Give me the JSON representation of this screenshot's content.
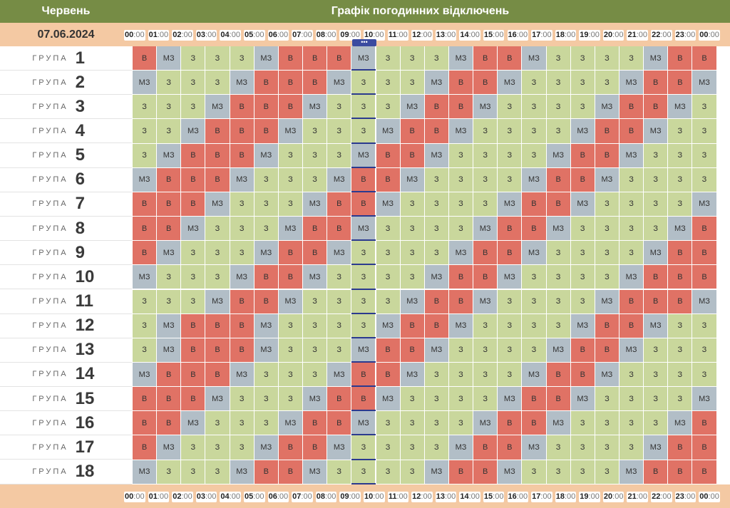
{
  "header": {
    "month": "Червень",
    "title": "Графік погодинних відключень"
  },
  "subheader": {
    "date": "07.06.2024"
  },
  "times": [
    "00:00",
    "01:00",
    "02:00",
    "03:00",
    "04:00",
    "05:00",
    "06:00",
    "07:00",
    "08:00",
    "09:00",
    "10:00",
    "11:00",
    "12:00",
    "13:00",
    "14:00",
    "15:00",
    "16:00",
    "17:00",
    "18:00",
    "19:00",
    "20:00",
    "21:00",
    "22:00",
    "23:00",
    "00:00"
  ],
  "group_word": "ГРУПА",
  "now_indicator": "•••",
  "legend_codes": {
    "V": "В",
    "MZ": "МЗ",
    "Z": "З"
  },
  "colors": {
    "V": "#e07265",
    "MZ": "#b2bec7",
    "Z": "#c9d79c",
    "header": "#768c45",
    "subheader": "#f4c9a3"
  },
  "groups": [
    {
      "n": "1",
      "cells": [
        "V",
        "MZ",
        "Z",
        "Z",
        "Z",
        "MZ",
        "V",
        "V",
        "V",
        "MZ",
        "Z",
        "Z",
        "Z",
        "MZ",
        "V",
        "V",
        "MZ",
        "Z",
        "Z",
        "Z",
        "Z",
        "MZ",
        "V",
        "V"
      ]
    },
    {
      "n": "2",
      "cells": [
        "MZ",
        "Z",
        "Z",
        "Z",
        "MZ",
        "V",
        "V",
        "V",
        "MZ",
        "Z",
        "Z",
        "Z",
        "MZ",
        "V",
        "V",
        "MZ",
        "Z",
        "Z",
        "Z",
        "Z",
        "MZ",
        "V",
        "V",
        "MZ"
      ]
    },
    {
      "n": "3",
      "cells": [
        "Z",
        "Z",
        "Z",
        "MZ",
        "V",
        "V",
        "V",
        "MZ",
        "Z",
        "Z",
        "Z",
        "MZ",
        "V",
        "V",
        "MZ",
        "Z",
        "Z",
        "Z",
        "Z",
        "MZ",
        "V",
        "V",
        "MZ",
        "Z"
      ]
    },
    {
      "n": "4",
      "cells": [
        "Z",
        "Z",
        "MZ",
        "V",
        "V",
        "V",
        "MZ",
        "Z",
        "Z",
        "Z",
        "MZ",
        "V",
        "V",
        "MZ",
        "Z",
        "Z",
        "Z",
        "Z",
        "MZ",
        "V",
        "V",
        "MZ",
        "Z",
        "Z"
      ]
    },
    {
      "n": "5",
      "cells": [
        "Z",
        "MZ",
        "V",
        "V",
        "V",
        "MZ",
        "Z",
        "Z",
        "Z",
        "MZ",
        "V",
        "V",
        "MZ",
        "Z",
        "Z",
        "Z",
        "Z",
        "MZ",
        "V",
        "V",
        "MZ",
        "Z",
        "Z",
        "Z"
      ]
    },
    {
      "n": "6",
      "cells": [
        "MZ",
        "V",
        "V",
        "V",
        "MZ",
        "Z",
        "Z",
        "Z",
        "MZ",
        "V",
        "V",
        "MZ",
        "Z",
        "Z",
        "Z",
        "Z",
        "MZ",
        "V",
        "V",
        "MZ",
        "Z",
        "Z",
        "Z",
        "Z"
      ]
    },
    {
      "n": "7",
      "cells": [
        "V",
        "V",
        "V",
        "MZ",
        "Z",
        "Z",
        "Z",
        "MZ",
        "V",
        "V",
        "MZ",
        "Z",
        "Z",
        "Z",
        "Z",
        "MZ",
        "V",
        "V",
        "MZ",
        "Z",
        "Z",
        "Z",
        "Z",
        "MZ"
      ]
    },
    {
      "n": "8",
      "cells": [
        "V",
        "V",
        "MZ",
        "Z",
        "Z",
        "Z",
        "MZ",
        "V",
        "V",
        "MZ",
        "Z",
        "Z",
        "Z",
        "Z",
        "MZ",
        "V",
        "V",
        "MZ",
        "Z",
        "Z",
        "Z",
        "Z",
        "MZ",
        "V"
      ]
    },
    {
      "n": "9",
      "cells": [
        "V",
        "MZ",
        "Z",
        "Z",
        "Z",
        "MZ",
        "V",
        "V",
        "MZ",
        "Z",
        "Z",
        "Z",
        "Z",
        "MZ",
        "V",
        "V",
        "MZ",
        "Z",
        "Z",
        "Z",
        "Z",
        "MZ",
        "V",
        "V"
      ]
    },
    {
      "n": "10",
      "cells": [
        "MZ",
        "Z",
        "Z",
        "Z",
        "MZ",
        "V",
        "V",
        "MZ",
        "Z",
        "Z",
        "Z",
        "Z",
        "MZ",
        "V",
        "V",
        "MZ",
        "Z",
        "Z",
        "Z",
        "Z",
        "MZ",
        "V",
        "V",
        "V"
      ]
    },
    {
      "n": "11",
      "cells": [
        "Z",
        "Z",
        "Z",
        "MZ",
        "V",
        "V",
        "MZ",
        "Z",
        "Z",
        "Z",
        "Z",
        "MZ",
        "V",
        "V",
        "MZ",
        "Z",
        "Z",
        "Z",
        "Z",
        "MZ",
        "V",
        "V",
        "V",
        "MZ"
      ]
    },
    {
      "n": "12",
      "cells": [
        "Z",
        "MZ",
        "V",
        "V",
        "V",
        "MZ",
        "Z",
        "Z",
        "Z",
        "Z",
        "MZ",
        "V",
        "V",
        "MZ",
        "Z",
        "Z",
        "Z",
        "Z",
        "MZ",
        "V",
        "V",
        "MZ",
        "Z",
        "Z"
      ]
    },
    {
      "n": "13",
      "cells": [
        "Z",
        "MZ",
        "V",
        "V",
        "V",
        "MZ",
        "Z",
        "Z",
        "Z",
        "MZ",
        "V",
        "V",
        "MZ",
        "Z",
        "Z",
        "Z",
        "Z",
        "MZ",
        "V",
        "V",
        "MZ",
        "Z",
        "Z",
        "Z"
      ]
    },
    {
      "n": "14",
      "cells": [
        "MZ",
        "V",
        "V",
        "V",
        "MZ",
        "Z",
        "Z",
        "Z",
        "MZ",
        "V",
        "V",
        "MZ",
        "Z",
        "Z",
        "Z",
        "Z",
        "MZ",
        "V",
        "V",
        "MZ",
        "Z",
        "Z",
        "Z",
        "Z"
      ]
    },
    {
      "n": "15",
      "cells": [
        "V",
        "V",
        "V",
        "MZ",
        "Z",
        "Z",
        "Z",
        "MZ",
        "V",
        "V",
        "MZ",
        "Z",
        "Z",
        "Z",
        "Z",
        "MZ",
        "V",
        "V",
        "MZ",
        "Z",
        "Z",
        "Z",
        "Z",
        "MZ"
      ]
    },
    {
      "n": "16",
      "cells": [
        "V",
        "V",
        "MZ",
        "Z",
        "Z",
        "Z",
        "MZ",
        "V",
        "V",
        "MZ",
        "Z",
        "Z",
        "Z",
        "Z",
        "MZ",
        "V",
        "V",
        "MZ",
        "Z",
        "Z",
        "Z",
        "Z",
        "MZ",
        "V"
      ]
    },
    {
      "n": "17",
      "cells": [
        "V",
        "MZ",
        "Z",
        "Z",
        "Z",
        "MZ",
        "V",
        "V",
        "MZ",
        "Z",
        "Z",
        "Z",
        "Z",
        "MZ",
        "V",
        "V",
        "MZ",
        "Z",
        "Z",
        "Z",
        "Z",
        "MZ",
        "V",
        "V"
      ]
    },
    {
      "n": "18",
      "cells": [
        "MZ",
        "Z",
        "Z",
        "Z",
        "MZ",
        "V",
        "V",
        "MZ",
        "Z",
        "Z",
        "Z",
        "Z",
        "MZ",
        "V",
        "V",
        "MZ",
        "Z",
        "Z",
        "Z",
        "Z",
        "MZ",
        "V",
        "V",
        "V"
      ]
    }
  ],
  "current_hour_index": 9
}
